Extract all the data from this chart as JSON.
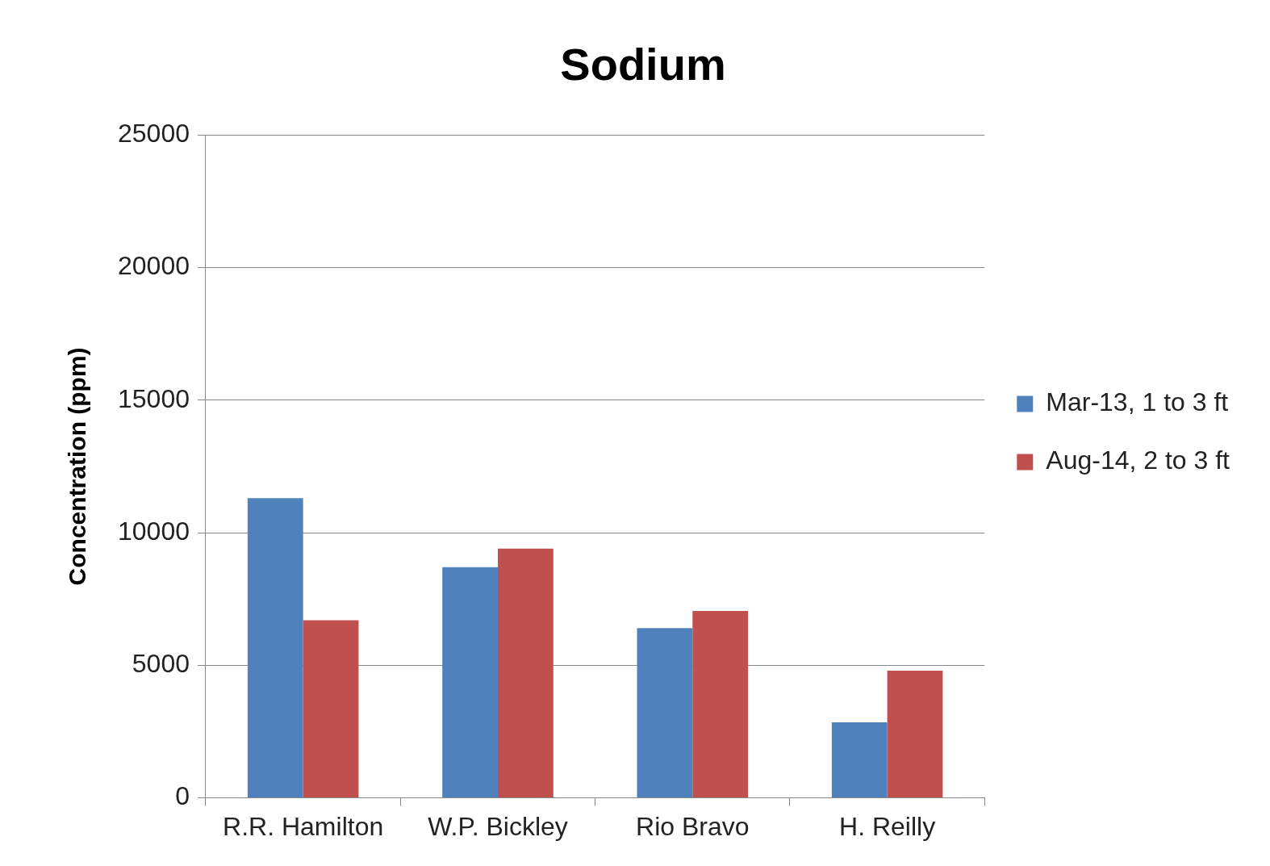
{
  "chart_data": {
    "type": "bar",
    "title": "Sodium",
    "ylabel": "Concentration (ppm)",
    "categories": [
      "R.R. Hamilton",
      "W.P. Bickley",
      "Rio Bravo",
      "H. Reilly"
    ],
    "series": [
      {
        "name": "Mar-13, 1 to 3 ft",
        "color": "#4f81bd",
        "values": [
          11300,
          8700,
          6400,
          2850
        ]
      },
      {
        "name": "Aug-14, 2 to 3 ft",
        "color": "#c0504d",
        "values": [
          6700,
          9400,
          7050,
          4800
        ]
      }
    ],
    "ylim": [
      0,
      25000
    ],
    "yticks": [
      0,
      5000,
      10000,
      15000,
      20000,
      25000
    ],
    "grid": "y",
    "legend": "right"
  }
}
